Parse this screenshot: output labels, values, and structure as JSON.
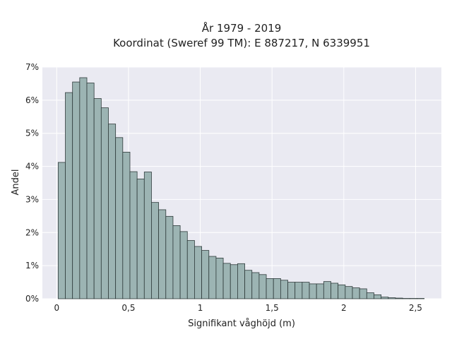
{
  "chart_data": {
    "type": "bar",
    "title_line1": "År 1979 - 2019",
    "title_line2": "Koordinat (Sweref 99 TM): E 887217, N 6339951",
    "xlabel": "Signifikant våghöjd (m)",
    "ylabel": "Andel",
    "xlim": [
      -0.1,
      2.68
    ],
    "ylim": [
      0,
      7
    ],
    "grid": true,
    "x_ticks": [
      0,
      0.5,
      1,
      1.5,
      2,
      2.5
    ],
    "x_tick_labels": [
      "0",
      "0,5",
      "1",
      "1,5",
      "2",
      "2,5"
    ],
    "y_ticks": [
      0,
      1,
      2,
      3,
      4,
      5,
      6,
      7
    ],
    "y_tick_labels": [
      "0%",
      "1%",
      "2%",
      "3%",
      "4%",
      "5%",
      "6%",
      "7%"
    ],
    "bin_width": 0.05,
    "bin_starts": [
      0.01,
      0.06,
      0.11,
      0.16,
      0.21,
      0.26,
      0.31,
      0.36,
      0.41,
      0.46,
      0.51,
      0.56,
      0.61,
      0.66,
      0.71,
      0.76,
      0.81,
      0.86,
      0.91,
      0.96,
      1.01,
      1.06,
      1.11,
      1.16,
      1.21,
      1.26,
      1.31,
      1.36,
      1.41,
      1.46,
      1.51,
      1.56,
      1.61,
      1.66,
      1.71,
      1.76,
      1.81,
      1.86,
      1.91,
      1.96,
      2.01,
      2.06,
      2.11,
      2.16,
      2.21,
      2.26,
      2.31,
      2.36,
      2.41,
      2.46,
      2.51
    ],
    "values": [
      4.12,
      6.23,
      6.55,
      6.68,
      6.52,
      6.05,
      5.77,
      5.28,
      4.87,
      4.43,
      3.84,
      3.62,
      3.83,
      2.91,
      2.69,
      2.49,
      2.21,
      2.03,
      1.76,
      1.58,
      1.46,
      1.28,
      1.23,
      1.07,
      1.03,
      1.06,
      0.86,
      0.79,
      0.73,
      0.61,
      0.61,
      0.56,
      0.5,
      0.5,
      0.5,
      0.45,
      0.45,
      0.52,
      0.47,
      0.42,
      0.37,
      0.33,
      0.3,
      0.18,
      0.12,
      0.05,
      0.03,
      0.02,
      0.01,
      0.01,
      0.01
    ],
    "colors": {
      "bar_fill": "#9cb4b3",
      "bar_edge": "#2f3b3b",
      "plot_bg": "#eaeaf2",
      "grid": "#ffffff",
      "text": "#222222"
    }
  }
}
